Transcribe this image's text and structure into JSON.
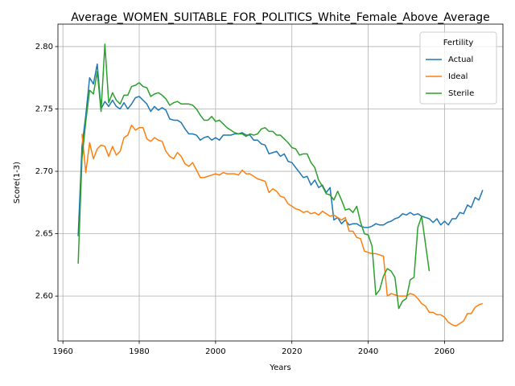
{
  "chart_data": {
    "type": "line",
    "title": "Average_WOMEN_SUITABLE_FOR_POLITICS_White_Female_Above_Average",
    "xlabel": "Years",
    "ylabel": "Score(1-3)",
    "legend_title": "Fertility",
    "legend": "upper right",
    "grid": true,
    "xlim": [
      1958.7,
      2075.3
    ],
    "xticks": [
      1960,
      1980,
      2000,
      2020,
      2040,
      2060
    ],
    "ylim": [
      2.564,
      2.818
    ],
    "yticks": [
      {
        "value": 2.6,
        "label": "2.60"
      },
      {
        "value": 2.65,
        "label": "2.65"
      },
      {
        "value": 2.7,
        "label": "2.70"
      },
      {
        "value": 2.75,
        "label": "2.75"
      },
      {
        "value": 2.8,
        "label": "2.80"
      }
    ],
    "x": [
      1964,
      1965,
      1966,
      1967,
      1968,
      1969,
      1970,
      1971,
      1972,
      1973,
      1974,
      1975,
      1976,
      1977,
      1978,
      1979,
      1980,
      1981,
      1982,
      1983,
      1984,
      1985,
      1986,
      1987,
      1988,
      1989,
      1990,
      1991,
      1992,
      1993,
      1994,
      1995,
      1996,
      1997,
      1998,
      1999,
      2000,
      2001,
      2002,
      2003,
      2004,
      2005,
      2006,
      2007,
      2008,
      2009,
      2010,
      2011,
      2012,
      2013,
      2014,
      2015,
      2016,
      2017,
      2018,
      2019,
      2020,
      2021,
      2022,
      2023,
      2024,
      2025,
      2026,
      2027,
      2028,
      2029,
      2030,
      2031,
      2032,
      2033,
      2034,
      2035,
      2036,
      2037,
      2038,
      2039,
      2040,
      2041,
      2042,
      2043,
      2044,
      2045,
      2046,
      2047,
      2048,
      2049,
      2050,
      2051,
      2052,
      2053,
      2054,
      2055,
      2056,
      2057,
      2058,
      2059,
      2060,
      2061,
      2062,
      2063,
      2064,
      2065,
      2066,
      2067,
      2068,
      2069,
      2070
    ],
    "series": [
      {
        "name": "Actual",
        "color": "#1f77b4",
        "values": [
          2.648,
          2.72,
          2.745,
          2.775,
          2.77,
          2.786,
          2.75,
          2.756,
          2.752,
          2.757,
          2.752,
          2.75,
          2.755,
          2.75,
          2.754,
          2.759,
          2.76,
          2.757,
          2.754,
          2.748,
          2.752,
          2.749,
          2.751,
          2.749,
          2.742,
          2.741,
          2.741,
          2.739,
          2.734,
          2.73,
          2.73,
          2.729,
          2.725,
          2.727,
          2.728,
          2.725,
          2.727,
          2.725,
          2.729,
          2.729,
          2.729,
          2.73,
          2.73,
          2.731,
          2.729,
          2.729,
          2.725,
          2.725,
          2.722,
          2.721,
          2.714,
          2.715,
          2.716,
          2.712,
          2.714,
          2.708,
          2.707,
          2.703,
          2.699,
          2.695,
          2.696,
          2.689,
          2.693,
          2.687,
          2.689,
          2.683,
          2.687,
          2.661,
          2.663,
          2.658,
          2.661,
          2.657,
          2.658,
          2.658,
          2.656,
          2.655,
          2.655,
          2.656,
          2.658,
          2.657,
          2.657,
          2.659,
          2.66,
          2.662,
          2.663,
          2.666,
          2.665,
          2.667,
          2.665,
          2.666,
          2.664,
          2.663,
          2.662,
          2.659,
          2.662,
          2.657,
          2.66,
          2.657,
          2.662,
          2.662,
          2.667,
          2.666,
          2.673,
          2.671,
          2.679,
          2.677,
          2.685
        ]
      },
      {
        "name": "Ideal",
        "color": "#ff7f0e",
        "values": [
          null,
          2.73,
          2.699,
          2.723,
          2.71,
          2.718,
          2.721,
          2.72,
          2.712,
          2.72,
          2.713,
          2.716,
          2.727,
          2.729,
          2.737,
          2.733,
          2.735,
          2.735,
          2.726,
          2.724,
          2.727,
          2.725,
          2.724,
          2.716,
          2.712,
          2.71,
          2.715,
          2.712,
          2.706,
          2.704,
          2.707,
          2.701,
          2.695,
          2.695,
          2.696,
          2.697,
          2.698,
          2.697,
          2.699,
          2.698,
          2.698,
          2.698,
          2.697,
          2.701,
          2.698,
          2.698,
          2.696,
          2.694,
          2.693,
          2.692,
          2.683,
          2.686,
          2.684,
          2.68,
          2.679,
          2.674,
          2.672,
          2.67,
          2.669,
          2.667,
          2.668,
          2.666,
          2.667,
          2.665,
          2.668,
          2.666,
          2.664,
          2.665,
          2.663,
          2.661,
          2.663,
          2.652,
          2.652,
          2.647,
          2.646,
          2.636,
          2.635,
          2.634,
          2.634,
          2.633,
          2.632,
          2.6,
          2.602,
          2.601,
          2.6,
          2.6,
          2.6,
          2.602,
          2.601,
          2.598,
          2.594,
          2.592,
          2.587,
          2.587,
          2.585,
          2.585,
          2.583,
          2.579,
          2.577,
          2.576,
          2.578,
          2.58,
          2.586,
          2.586,
          2.591,
          2.593,
          2.594
        ]
      },
      {
        "name": "Sterile",
        "color": "#2ca02c",
        "values": [
          2.626,
          2.71,
          2.74,
          2.765,
          2.762,
          2.78,
          2.748,
          2.802,
          2.755,
          2.763,
          2.757,
          2.754,
          2.761,
          2.761,
          2.768,
          2.769,
          2.771,
          2.768,
          2.767,
          2.76,
          2.762,
          2.763,
          2.761,
          2.758,
          2.753,
          2.755,
          2.756,
          2.754,
          2.754,
          2.754,
          2.753,
          2.75,
          2.745,
          2.741,
          2.741,
          2.744,
          2.74,
          2.741,
          2.738,
          2.735,
          2.733,
          2.731,
          2.73,
          2.73,
          2.728,
          2.73,
          2.729,
          2.73,
          2.734,
          2.735,
          2.732,
          2.732,
          2.729,
          2.729,
          2.726,
          2.723,
          2.719,
          2.718,
          2.713,
          2.714,
          2.714,
          2.707,
          2.703,
          2.693,
          2.688,
          2.682,
          2.681,
          2.677,
          2.684,
          2.677,
          2.669,
          2.67,
          2.667,
          2.672,
          2.659,
          2.65,
          2.649,
          2.64,
          2.601,
          2.605,
          2.616,
          2.622,
          2.62,
          2.615,
          2.59,
          2.596,
          2.598,
          2.613,
          2.615,
          2.655,
          2.664,
          2.642,
          2.62,
          null,
          null,
          null,
          null,
          null,
          null,
          null,
          null,
          null,
          null,
          null,
          null,
          null,
          null
        ]
      }
    ]
  }
}
